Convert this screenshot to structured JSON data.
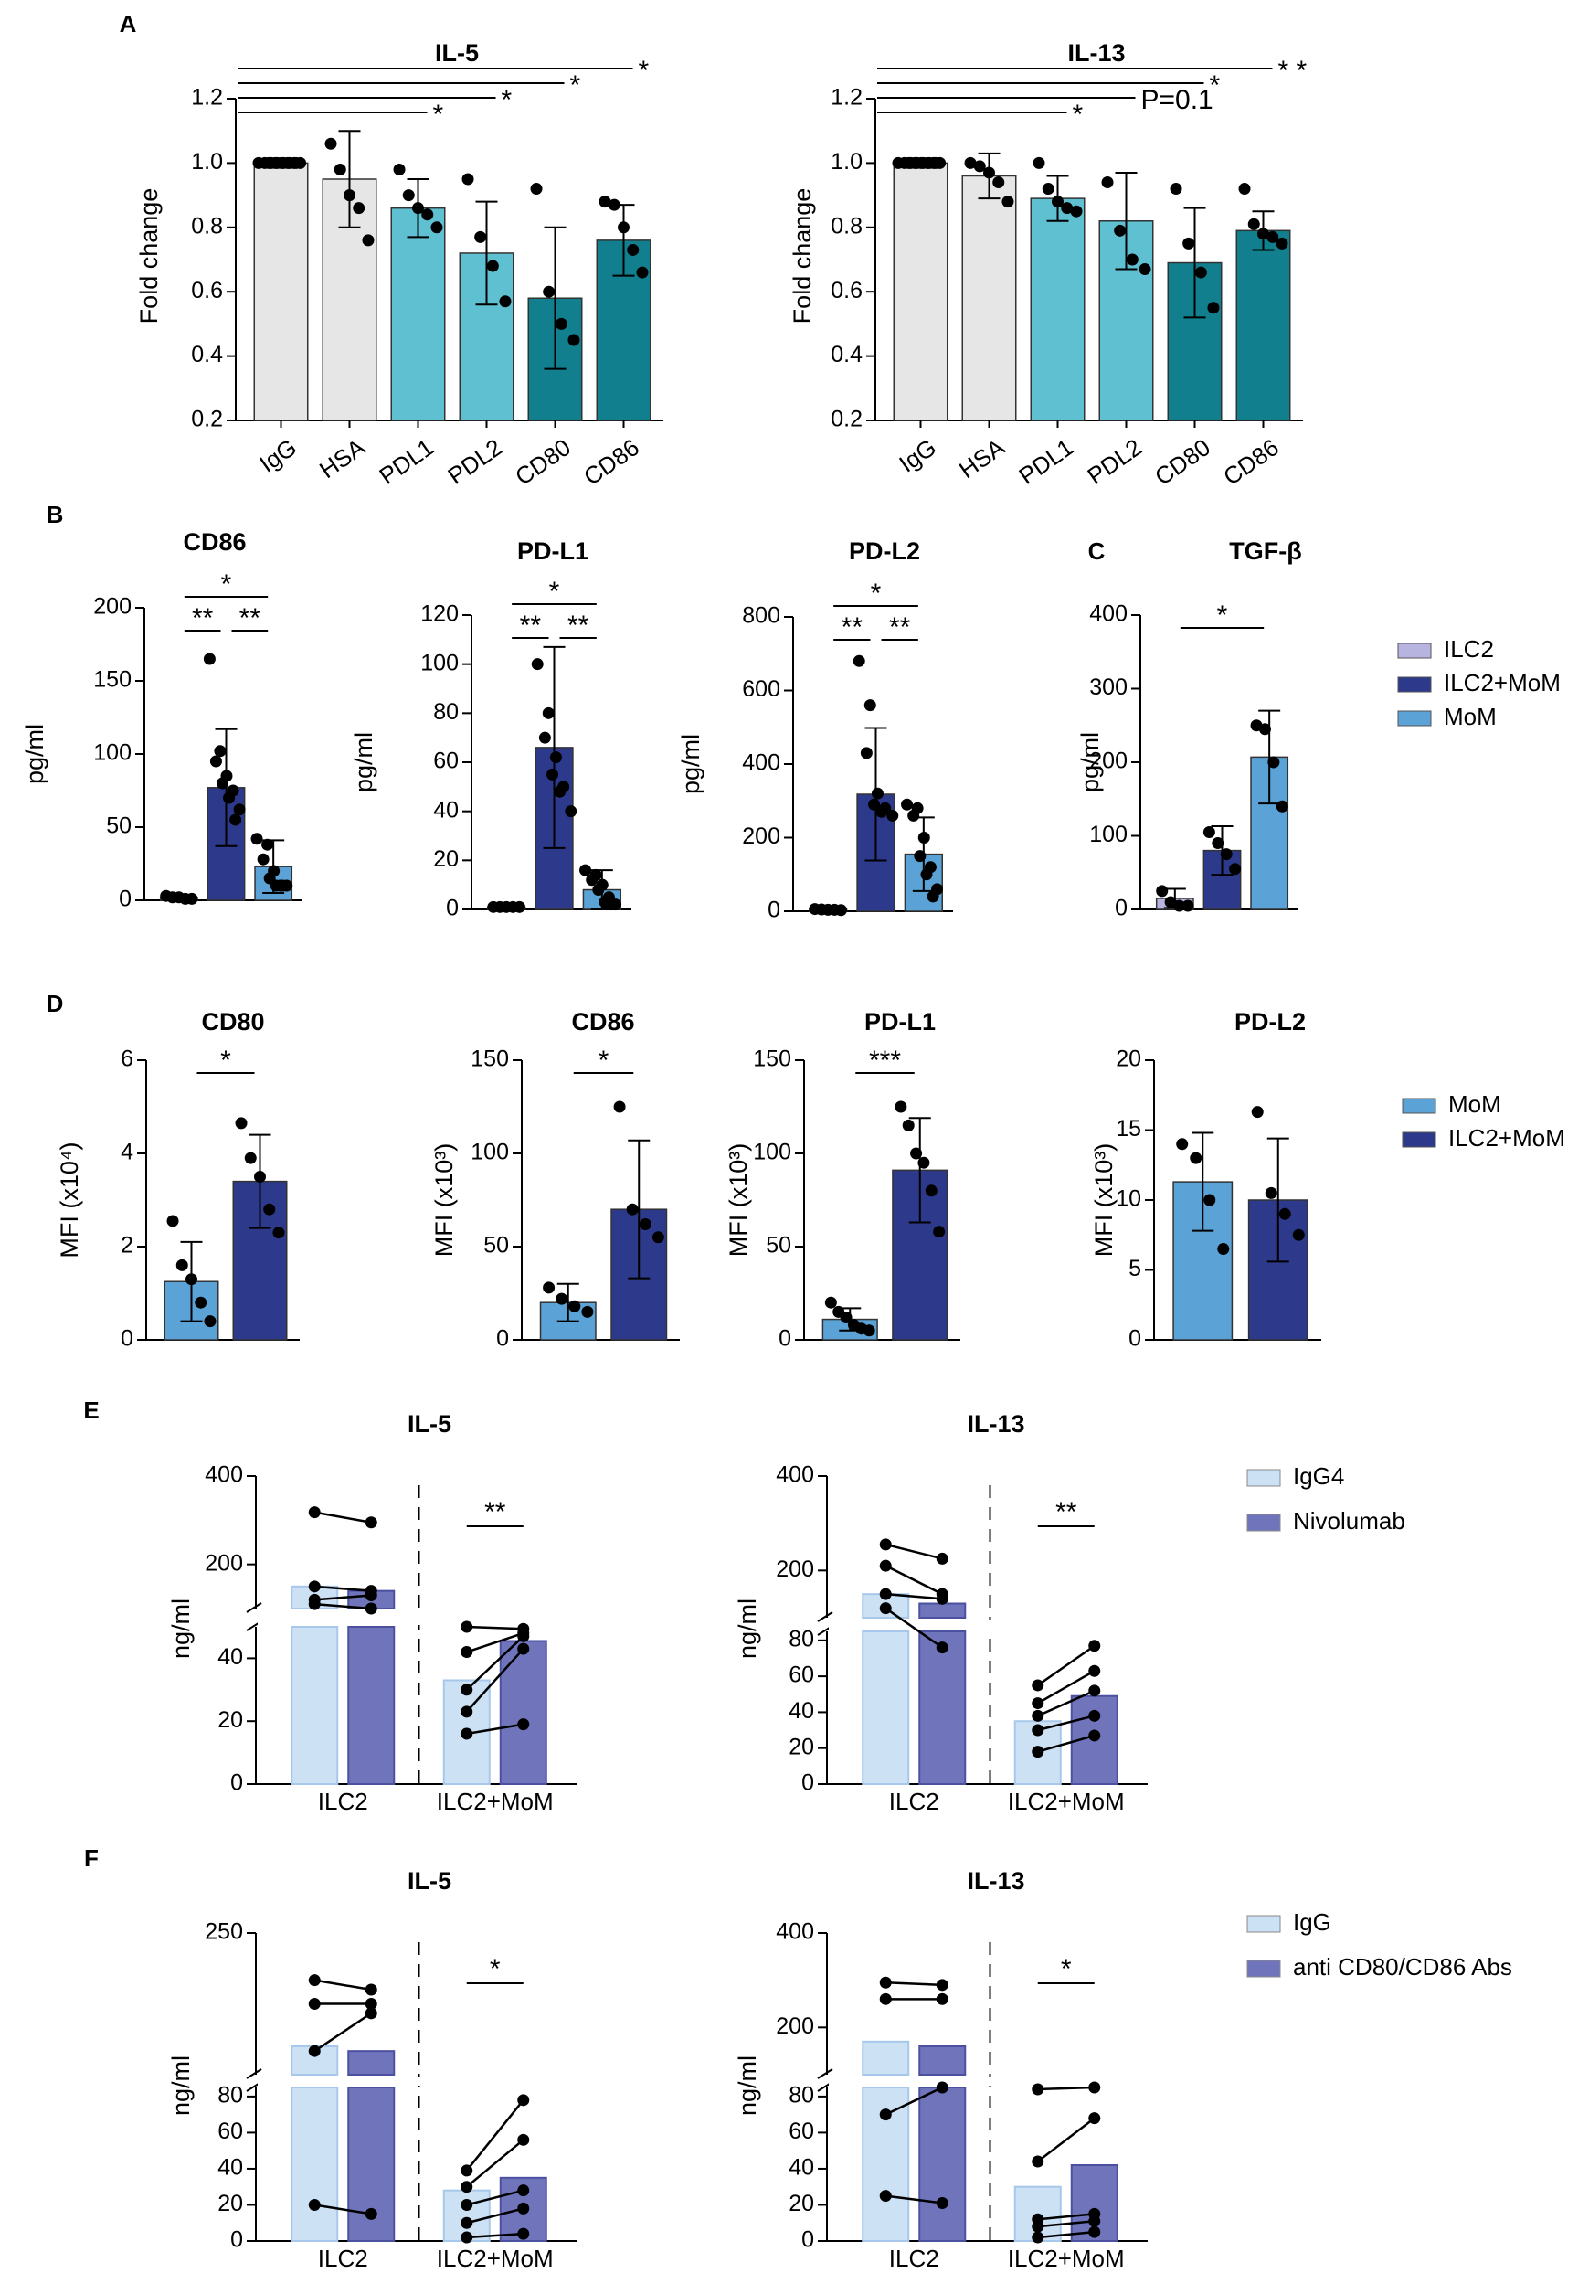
{
  "chart_data": [
    {
      "id": "A-IL5",
      "panel": "A",
      "type": "bar",
      "title": "IL-5",
      "ylabel": "Fold change",
      "ylim": [
        0.2,
        1.2
      ],
      "yticks": [
        "0.2",
        "0.4",
        "0.6",
        "0.8",
        "1.0",
        "1.2"
      ],
      "categories": [
        "IgG",
        "HSA",
        "PDL1",
        "PDL2",
        "CD80",
        "CD86"
      ],
      "values": [
        1.0,
        0.95,
        0.86,
        0.72,
        0.58,
        0.76
      ],
      "errors": [
        0.0,
        0.15,
        0.09,
        0.16,
        0.22,
        0.11
      ],
      "colors": [
        "#e6e6e6",
        "#e6e6e6",
        "#5fc0d2",
        "#5fc0d2",
        "#117f8e",
        "#117f8e"
      ],
      "points": [
        [
          1,
          1,
          1,
          1,
          1,
          1,
          1,
          1,
          1,
          1,
          1,
          1,
          1
        ],
        [
          1.06,
          0.98,
          0.9,
          0.86,
          0.76
        ],
        [
          0.98,
          0.9,
          0.86,
          0.84,
          0.8
        ],
        [
          0.95,
          0.77,
          0.68,
          0.57
        ],
        [
          0.92,
          0.6,
          0.5,
          0.45
        ],
        [
          0.88,
          0.87,
          0.8,
          0.73,
          0.66
        ]
      ],
      "significance": [
        {
          "from": 0,
          "to": 2,
          "label": "*"
        },
        {
          "from": 0,
          "to": 3,
          "label": "*"
        },
        {
          "from": 0,
          "to": 4,
          "label": "*"
        },
        {
          "from": 0,
          "to": 5,
          "label": "*"
        }
      ]
    },
    {
      "id": "A-IL13",
      "panel": "",
      "type": "bar",
      "title": "IL-13",
      "ylabel": "Fold change",
      "ylim": [
        0.2,
        1.2
      ],
      "yticks": [
        "0.2",
        "0.4",
        "0.6",
        "0.8",
        "1.0",
        "1.2"
      ],
      "categories": [
        "IgG",
        "HSA",
        "PDL1",
        "PDL2",
        "CD80",
        "CD86"
      ],
      "values": [
        1.0,
        0.96,
        0.89,
        0.82,
        0.69,
        0.79
      ],
      "errors": [
        0.0,
        0.07,
        0.07,
        0.15,
        0.17,
        0.06
      ],
      "colors": [
        "#e6e6e6",
        "#e6e6e6",
        "#5fc0d2",
        "#5fc0d2",
        "#117f8e",
        "#117f8e"
      ],
      "points": [
        [
          1,
          1,
          1,
          1,
          1,
          1,
          1,
          1,
          1,
          1,
          1,
          1,
          1
        ],
        [
          1.0,
          0.99,
          0.97,
          0.94,
          0.88
        ],
        [
          1.0,
          0.92,
          0.88,
          0.86,
          0.85
        ],
        [
          0.94,
          0.79,
          0.7,
          0.67
        ],
        [
          0.92,
          0.75,
          0.66,
          0.55
        ],
        [
          0.92,
          0.81,
          0.78,
          0.77,
          0.75
        ]
      ],
      "significance": [
        {
          "from": 0,
          "to": 2,
          "label": "*"
        },
        {
          "from": 0,
          "to": 3,
          "label": "P=0.1"
        },
        {
          "from": 0,
          "to": 4,
          "label": "*"
        },
        {
          "from": 0,
          "to": 5,
          "label": "* *"
        }
      ]
    },
    {
      "id": "B-CD86",
      "panel": "B",
      "type": "bar",
      "title": "CD86",
      "ylabel": "pg/ml",
      "ylim": [
        0,
        200
      ],
      "yticks": [
        "0",
        "50",
        "100",
        "150",
        "200"
      ],
      "categories": [
        "ILC2",
        "ILC2+MoM",
        "MoM"
      ],
      "values": [
        2,
        77,
        23
      ],
      "errors": [
        1,
        40,
        18
      ],
      "colors": [
        "#b8b4e0",
        "#2d3a8c",
        "#5ba3d6"
      ],
      "points": [
        [
          3,
          2,
          2,
          1,
          1
        ],
        [
          165,
          102,
          95,
          85,
          80,
          75,
          70,
          62,
          55
        ],
        [
          42,
          38,
          28,
          20,
          15,
          10,
          10,
          10,
          10
        ]
      ],
      "significance": [
        {
          "from": 0,
          "to": 1,
          "label": "**"
        },
        {
          "from": 1,
          "to": 2,
          "label": "**"
        },
        {
          "from": 0,
          "to": 2,
          "label": "*"
        }
      ]
    },
    {
      "id": "B-PDL1",
      "panel": "",
      "type": "bar",
      "title": "PD-L1",
      "ylabel": "pg/ml",
      "ylim": [
        0,
        120
      ],
      "yticks": [
        "0",
        "20",
        "40",
        "60",
        "80",
        "100",
        "120"
      ],
      "categories": [
        "ILC2",
        "ILC2+MoM",
        "MoM"
      ],
      "values": [
        1,
        66,
        8
      ],
      "errors": [
        0.5,
        41,
        8
      ],
      "colors": [
        "#b8b4e0",
        "#2d3a8c",
        "#5ba3d6"
      ],
      "points": [
        [
          1,
          1,
          1,
          1,
          1
        ],
        [
          100,
          80,
          70,
          62,
          55,
          50,
          48,
          40
        ],
        [
          16,
          14,
          12,
          10,
          8,
          5,
          3,
          2,
          2
        ]
      ],
      "significance": [
        {
          "from": 0,
          "to": 1,
          "label": "**"
        },
        {
          "from": 1,
          "to": 2,
          "label": "**"
        },
        {
          "from": 0,
          "to": 2,
          "label": "*"
        }
      ]
    },
    {
      "id": "B-PDL2",
      "panel": "",
      "type": "bar",
      "title": "PD-L2",
      "ylabel": "pg/ml",
      "ylim": [
        0,
        800
      ],
      "yticks": [
        "0",
        "200",
        "400",
        "600",
        "800"
      ],
      "categories": [
        "ILC2",
        "ILC2+MoM",
        "MoM"
      ],
      "values": [
        5,
        318,
        155
      ],
      "errors": [
        3,
        180,
        100
      ],
      "colors": [
        "#b8b4e0",
        "#2d3a8c",
        "#5ba3d6"
      ],
      "points": [
        [
          6,
          5,
          4,
          4,
          3
        ],
        [
          680,
          560,
          430,
          320,
          290,
          280,
          270,
          260
        ],
        [
          290,
          280,
          260,
          200,
          150,
          120,
          100,
          60,
          40
        ]
      ],
      "significance": [
        {
          "from": 0,
          "to": 1,
          "label": "**"
        },
        {
          "from": 1,
          "to": 2,
          "label": "**"
        },
        {
          "from": 0,
          "to": 2,
          "label": "*"
        }
      ]
    },
    {
      "id": "C-TGFB",
      "panel": "C",
      "type": "bar",
      "title": "TGF-β",
      "ylabel": "pg/ml",
      "ylim": [
        0,
        400
      ],
      "yticks": [
        "0",
        "100",
        "200",
        "300",
        "400"
      ],
      "categories": [
        "ILC2",
        "ILC2+MoM",
        "MoM"
      ],
      "values": [
        15,
        80,
        207
      ],
      "errors": [
        13,
        33,
        63
      ],
      "colors": [
        "#b8b4e0",
        "#2d3a8c",
        "#5ba3d6"
      ],
      "points": [
        [
          25,
          10,
          5,
          5
        ],
        [
          105,
          90,
          75,
          55
        ],
        [
          250,
          245,
          200,
          140
        ]
      ],
      "significance": [
        {
          "from": 0,
          "to": 2,
          "label": "*"
        }
      ],
      "legend": [
        {
          "label": "ILC2",
          "color": "#b8b4e0"
        },
        {
          "label": "ILC2+MoM",
          "color": "#2d3a8c"
        },
        {
          "label": "MoM",
          "color": "#5ba3d6"
        }
      ]
    },
    {
      "id": "D-CD80",
      "panel": "D",
      "type": "bar",
      "title": "CD80",
      "ylabel": "MFI (x10⁴)",
      "ylim": [
        0,
        6
      ],
      "yticks": [
        "0",
        "2",
        "4",
        "6"
      ],
      "categories": [
        "MoM",
        "ILC2+MoM"
      ],
      "values": [
        1.25,
        3.4
      ],
      "errors": [
        0.85,
        1.0
      ],
      "colors": [
        "#5ba3d6",
        "#2d3a8c"
      ],
      "points": [
        [
          2.55,
          1.6,
          1.3,
          0.8,
          0.4
        ],
        [
          4.65,
          3.9,
          3.5,
          2.8,
          2.3
        ]
      ],
      "significance": [
        {
          "from": 0,
          "to": 1,
          "label": "*"
        }
      ]
    },
    {
      "id": "D-CD86",
      "panel": "",
      "type": "bar",
      "title": "CD86",
      "ylabel": "MFI (x10³)",
      "ylim": [
        0,
        150
      ],
      "yticks": [
        "0",
        "50",
        "100",
        "150"
      ],
      "categories": [
        "MoM",
        "ILC2+MoM"
      ],
      "values": [
        20,
        70
      ],
      "errors": [
        10,
        37
      ],
      "colors": [
        "#5ba3d6",
        "#2d3a8c"
      ],
      "points": [
        [
          28,
          22,
          18,
          15
        ],
        [
          125,
          70,
          62,
          55
        ]
      ],
      "significance": [
        {
          "from": 0,
          "to": 1,
          "label": "*"
        }
      ]
    },
    {
      "id": "D-PDL1",
      "panel": "",
      "type": "bar",
      "title": "PD-L1",
      "ylabel": "MFI (x10³)",
      "ylim": [
        0,
        150
      ],
      "yticks": [
        "0",
        "50",
        "100",
        "150"
      ],
      "categories": [
        "MoM",
        "ILC2+MoM"
      ],
      "values": [
        11,
        91
      ],
      "errors": [
        6,
        28
      ],
      "colors": [
        "#5ba3d6",
        "#2d3a8c"
      ],
      "points": [
        [
          20,
          15,
          12,
          8,
          6,
          5
        ],
        [
          125,
          115,
          100,
          95,
          80,
          58
        ]
      ],
      "significance": [
        {
          "from": 0,
          "to": 1,
          "label": "***"
        }
      ]
    },
    {
      "id": "D-PDL2",
      "panel": "",
      "type": "bar",
      "title": "PD-L2",
      "ylabel": "MFI (x10³)",
      "ylim": [
        0,
        20
      ],
      "yticks": [
        "0",
        "5",
        "10",
        "15",
        "20"
      ],
      "categories": [
        "MoM",
        "ILC2+MoM"
      ],
      "values": [
        11.3,
        10.0
      ],
      "errors": [
        3.5,
        4.4
      ],
      "colors": [
        "#5ba3d6",
        "#2d3a8c"
      ],
      "points": [
        [
          14,
          13,
          10,
          6.5
        ],
        [
          16.3,
          10.5,
          9,
          7.5
        ]
      ],
      "significance": [],
      "legend": [
        {
          "label": "MoM",
          "color": "#5ba3d6"
        },
        {
          "label": "ILC2+MoM",
          "color": "#2d3a8c"
        }
      ]
    },
    {
      "id": "E-IL5",
      "panel": "E",
      "type": "bar",
      "title": "IL-5",
      "ylabel": "ng/ml",
      "broken_axis": true,
      "ylim_lower": [
        0,
        50
      ],
      "ylim_upper": [
        100,
        400
      ],
      "yticks_lower": [
        "0",
        "20",
        "40"
      ],
      "yticks_upper": [
        "200",
        "400"
      ],
      "categories": [
        "ILC2",
        "ILC2+MoM"
      ],
      "series": [
        {
          "name": "IgG4",
          "values": [
            150,
            33
          ],
          "color": "#cde1f4",
          "stroke": "#a7c8ea"
        },
        {
          "name": "Nivolumab",
          "values": [
            140,
            45.5
          ],
          "color": "#6f74bb",
          "stroke": "#4b51a0"
        }
      ],
      "pairs": [
        [
          [
            318,
            295
          ],
          [
            150,
            140
          ],
          [
            120,
            130
          ],
          [
            110,
            100
          ]
        ],
        [
          [
            50,
            54
          ],
          [
            42,
            48
          ],
          [
            30,
            47
          ],
          [
            23,
            43
          ],
          [
            16,
            19
          ]
        ]
      ],
      "significance": [
        {
          "group": 1,
          "label": "**"
        }
      ]
    },
    {
      "id": "E-IL13",
      "panel": "",
      "type": "bar",
      "title": "IL-13",
      "ylabel": "ng/ml",
      "broken_axis": true,
      "ylim_lower": [
        0,
        85
      ],
      "ylim_upper": [
        100,
        400
      ],
      "yticks_lower": [
        "0",
        "20",
        "40",
        "60",
        "80"
      ],
      "yticks_upper": [
        "200",
        "400"
      ],
      "categories": [
        "ILC2",
        "ILC2+MoM"
      ],
      "series": [
        {
          "name": "IgG4",
          "values": [
            150,
            35
          ],
          "color": "#cde1f4",
          "stroke": "#a7c8ea"
        },
        {
          "name": "Nivolumab",
          "values": [
            130,
            49
          ],
          "color": "#6f74bb",
          "stroke": "#4b51a0"
        }
      ],
      "pairs": [
        [
          [
            255,
            225
          ],
          [
            210,
            150
          ],
          [
            150,
            140
          ],
          [
            120,
            76
          ]
        ],
        [
          [
            55,
            77
          ],
          [
            45,
            63
          ],
          [
            38,
            52
          ],
          [
            30,
            38
          ],
          [
            18,
            27
          ]
        ]
      ],
      "significance": [
        {
          "group": 1,
          "label": "**"
        }
      ],
      "legend": [
        {
          "label": "IgG4",
          "color": "#cde1f4"
        },
        {
          "label": "Nivolumab",
          "color": "#6f74bb"
        }
      ]
    },
    {
      "id": "F-IL5",
      "panel": "F",
      "type": "bar",
      "title": "IL-5",
      "ylabel": "ng/ml",
      "broken_axis": true,
      "ylim_lower": [
        0,
        85
      ],
      "ylim_upper": [
        100,
        250
      ],
      "yticks_lower": [
        "0",
        "20",
        "40",
        "60",
        "80"
      ],
      "yticks_upper": [
        "250"
      ],
      "categories": [
        "ILC2",
        "ILC2+MoM"
      ],
      "series": [
        {
          "name": "IgG",
          "values": [
            130,
            28
          ],
          "color": "#cde1f4",
          "stroke": "#a7c8ea"
        },
        {
          "name": "anti CD80/CD86 Abs",
          "values": [
            125,
            35
          ],
          "color": "#6f74bb",
          "stroke": "#4b51a0"
        }
      ],
      "pairs": [
        [
          [
            200,
            190
          ],
          [
            175,
            175
          ],
          [
            125,
            165
          ],
          [
            20,
            15
          ]
        ],
        [
          [
            39,
            78
          ],
          [
            30,
            56
          ],
          [
            20,
            28
          ],
          [
            10,
            18
          ],
          [
            2,
            4
          ]
        ]
      ],
      "significance": [
        {
          "group": 1,
          "label": "*"
        }
      ]
    },
    {
      "id": "F-IL13",
      "panel": "",
      "type": "bar",
      "title": "IL-13",
      "ylabel": "ng/ml",
      "broken_axis": true,
      "ylim_lower": [
        0,
        85
      ],
      "ylim_upper": [
        100,
        400
      ],
      "yticks_lower": [
        "0",
        "20",
        "40",
        "60",
        "80"
      ],
      "yticks_upper": [
        "200",
        "400"
      ],
      "categories": [
        "ILC2",
        "ILC2+MoM"
      ],
      "series": [
        {
          "name": "IgG",
          "values": [
            170,
            30
          ],
          "color": "#cde1f4",
          "stroke": "#a7c8ea"
        },
        {
          "name": "anti CD80/CD86 Abs",
          "values": [
            160,
            42
          ],
          "color": "#6f74bb",
          "stroke": "#4b51a0"
        }
      ],
      "pairs": [
        [
          [
            295,
            290
          ],
          [
            260,
            260
          ],
          [
            70,
            85
          ],
          [
            25,
            21
          ]
        ],
        [
          [
            84,
            85
          ],
          [
            44,
            68
          ],
          [
            12,
            15
          ],
          [
            8,
            11
          ],
          [
            2,
            5
          ]
        ]
      ],
      "significance": [
        {
          "group": 1,
          "label": "*"
        }
      ],
      "legend": [
        {
          "label": "IgG",
          "color": "#cde1f4"
        },
        {
          "label": "anti CD80/CD86 Abs",
          "color": "#6f74bb"
        }
      ]
    }
  ]
}
